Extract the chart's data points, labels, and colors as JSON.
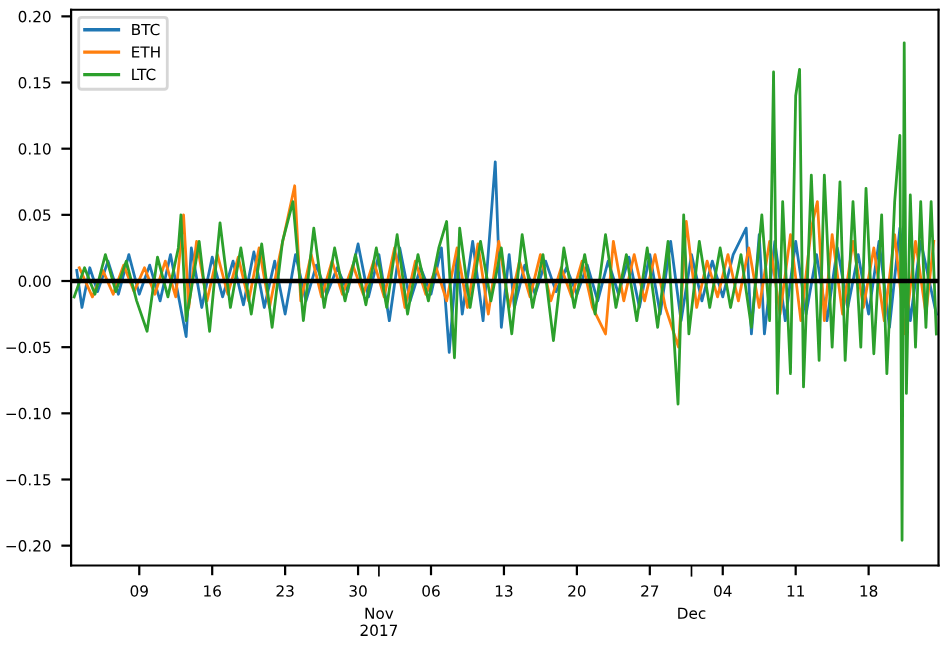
{
  "chart_data": {
    "type": "line",
    "xlim": [
      "2017-10-02T11:00",
      "2017-12-24T17:00"
    ],
    "ylim": [
      -0.215,
      0.205
    ],
    "yticks": [
      {
        "value": -0.2,
        "label": "−0.20"
      },
      {
        "value": -0.15,
        "label": "−0.15"
      },
      {
        "value": -0.1,
        "label": "−0.10"
      },
      {
        "value": -0.05,
        "label": "−0.05"
      },
      {
        "value": 0,
        "label": "0.00"
      },
      {
        "value": 0.05,
        "label": "0.05"
      },
      {
        "value": 0.1,
        "label": "0.10"
      },
      {
        "value": 0.15,
        "label": "0.15"
      },
      {
        "value": 0.2,
        "label": "0.20"
      }
    ],
    "xticks": [
      {
        "value": "2017-10-09",
        "label": "09"
      },
      {
        "value": "2017-10-16",
        "label": "16"
      },
      {
        "value": "2017-10-23",
        "label": "23"
      },
      {
        "value": "2017-10-30",
        "label": "30"
      },
      {
        "value": "2017-11-01",
        "label": null
      },
      {
        "value": "2017-11-06",
        "label": "06"
      },
      {
        "value": "2017-11-13",
        "label": "13"
      },
      {
        "value": "2017-11-20",
        "label": "20"
      },
      {
        "value": "2017-11-27",
        "label": "27"
      },
      {
        "value": "2017-12-01",
        "label": null
      },
      {
        "value": "2017-12-04",
        "label": "04"
      },
      {
        "value": "2017-12-11",
        "label": "11"
      },
      {
        "value": "2017-12-18",
        "label": "18"
      }
    ],
    "grid": false,
    "legend": "top left",
    "annotations": [
      "Nov\n2017",
      "Dec"
    ],
    "ref_lines": [
      {
        "axis": "y",
        "value": 0,
        "color": "#000000"
      }
    ],
    "series": [
      {
        "name": "BTC",
        "color": "#1f77b4",
        "x": [
          "2017-10-03T00:00",
          "2017-10-03T12:00",
          "2017-10-04T06:00",
          "2017-10-05T00:00",
          "2017-10-06T00:00",
          "2017-10-07T00:00",
          "2017-10-08T00:00",
          "2017-10-09T00:00",
          "2017-10-10T00:00",
          "2017-10-11T00:00",
          "2017-10-12T00:00",
          "2017-10-13T12:00",
          "2017-10-14T00:00",
          "2017-10-15T00:00",
          "2017-10-16T00:00",
          "2017-10-17T00:00",
          "2017-10-18T00:00",
          "2017-10-19T00:00",
          "2017-10-20T00:00",
          "2017-10-21T00:00",
          "2017-10-22T00:00",
          "2017-10-23T00:00",
          "2017-10-24T00:00",
          "2017-10-25T00:00",
          "2017-10-26T00:00",
          "2017-10-27T00:00",
          "2017-10-28T00:00",
          "2017-10-29T00:00",
          "2017-10-30T00:00",
          "2017-10-31T00:00",
          "2017-11-01T00:00",
          "2017-11-02T00:00",
          "2017-11-03T00:00",
          "2017-11-04T00:00",
          "2017-11-05T00:00",
          "2017-11-06T00:00",
          "2017-11-07T00:00",
          "2017-11-07T18:00",
          "2017-11-08T12:00",
          "2017-11-09T00:00",
          "2017-11-10T00:00",
          "2017-11-11T00:00",
          "2017-11-12T04:00",
          "2017-11-12T18:00",
          "2017-11-13T12:00",
          "2017-11-14T00:00",
          "2017-11-15T00:00",
          "2017-11-16T00:00",
          "2017-11-17T00:00",
          "2017-11-18T00:00",
          "2017-11-19T00:00",
          "2017-11-20T00:00",
          "2017-11-21T00:00",
          "2017-11-22T00:00",
          "2017-11-23T00:00",
          "2017-11-24T00:00",
          "2017-11-25T00:00",
          "2017-11-26T00:00",
          "2017-11-27T00:00",
          "2017-11-28T00:00",
          "2017-11-29T00:00",
          "2017-11-30T00:00",
          "2017-12-01T00:00",
          "2017-12-02T00:00",
          "2017-12-03T00:00",
          "2017-12-04T00:00",
          "2017-12-05T00:00",
          "2017-12-06T06:00",
          "2017-12-06T18:00",
          "2017-12-07T12:00",
          "2017-12-08T00:00",
          "2017-12-09T00:00",
          "2017-12-10T00:00",
          "2017-12-11T00:00",
          "2017-12-12T00:00",
          "2017-12-13T00:00",
          "2017-12-14T00:00",
          "2017-12-15T00:00",
          "2017-12-16T00:00",
          "2017-12-17T00:00",
          "2017-12-18T00:00",
          "2017-12-19T00:00",
          "2017-12-20T00:00",
          "2017-12-21T00:00",
          "2017-12-22T00:00",
          "2017-12-23T00:00",
          "2017-12-24T12:00"
        ],
        "values": [
          0.008,
          -0.02,
          0.01,
          -0.008,
          0.015,
          -0.01,
          0.02,
          -0.01,
          0.012,
          -0.015,
          0.02,
          -0.042,
          0.025,
          -0.02,
          0.018,
          -0.012,
          0.015,
          -0.018,
          0.022,
          -0.02,
          0.015,
          -0.025,
          0.02,
          -0.015,
          0.012,
          -0.01,
          0.01,
          -0.008,
          0.028,
          -0.012,
          0.02,
          -0.03,
          0.025,
          -0.015,
          0.01,
          -0.01,
          0.025,
          -0.054,
          0.02,
          -0.025,
          0.03,
          -0.03,
          0.09,
          -0.035,
          0.02,
          -0.02,
          0.012,
          -0.01,
          0.015,
          -0.008,
          0.01,
          -0.01,
          0.012,
          -0.015,
          0.015,
          -0.01,
          0.018,
          -0.02,
          0.02,
          -0.025,
          0.03,
          -0.03,
          0.02,
          -0.015,
          0.015,
          -0.012,
          0.02,
          0.04,
          -0.04,
          0.035,
          -0.04,
          0.03,
          -0.03,
          0.03,
          -0.025,
          0.02,
          -0.03,
          0.025,
          -0.02,
          0.02,
          -0.025,
          0.03,
          -0.035,
          0.04,
          -0.03,
          0.03,
          -0.025
        ]
      },
      {
        "name": "ETH",
        "color": "#ff7f0e",
        "x": [
          "2017-10-03T06:00",
          "2017-10-04T12:00",
          "2017-10-05T12:00",
          "2017-10-06T12:00",
          "2017-10-07T12:00",
          "2017-10-08T12:00",
          "2017-10-09T12:00",
          "2017-10-10T12:00",
          "2017-10-11T12:00",
          "2017-10-12T12:00",
          "2017-10-13T06:00",
          "2017-10-13T18:00",
          "2017-10-14T12:00",
          "2017-10-15T12:00",
          "2017-10-16T12:00",
          "2017-10-17T12:00",
          "2017-10-18T12:00",
          "2017-10-19T12:00",
          "2017-10-20T12:00",
          "2017-10-21T12:00",
          "2017-10-22T12:00",
          "2017-10-23T22:00",
          "2017-10-24T12:00",
          "2017-10-25T12:00",
          "2017-10-26T12:00",
          "2017-10-27T12:00",
          "2017-10-28T12:00",
          "2017-10-29T12:00",
          "2017-10-30T12:00",
          "2017-10-31T12:00",
          "2017-11-01T12:00",
          "2017-11-02T12:00",
          "2017-11-03T12:00",
          "2017-11-04T12:00",
          "2017-11-05T12:00",
          "2017-11-06T12:00",
          "2017-11-07T12:00",
          "2017-11-08T12:00",
          "2017-11-09T12:00",
          "2017-11-10T12:00",
          "2017-11-11T12:00",
          "2017-11-12T12:00",
          "2017-11-13T12:00",
          "2017-11-14T12:00",
          "2017-11-15T12:00",
          "2017-11-16T12:00",
          "2017-11-17T12:00",
          "2017-11-18T12:00",
          "2017-11-19T12:00",
          "2017-11-20T12:00",
          "2017-11-21T12:00",
          "2017-11-22T18:00",
          "2017-11-23T12:00",
          "2017-11-24T12:00",
          "2017-11-25T12:00",
          "2017-11-26T12:00",
          "2017-11-27T12:00",
          "2017-11-28T12:00",
          "2017-11-29T18:00",
          "2017-11-30T12:00",
          "2017-12-01T12:00",
          "2017-12-02T12:00",
          "2017-12-03T12:00",
          "2017-12-04T12:00",
          "2017-12-05T12:00",
          "2017-12-06T12:00",
          "2017-12-07T12:00",
          "2017-12-08T12:00",
          "2017-12-09T12:00",
          "2017-12-10T12:00",
          "2017-12-11T12:00",
          "2017-12-12T12:00",
          "2017-12-13T02:00",
          "2017-12-13T18:00",
          "2017-12-14T12:00",
          "2017-12-15T12:00",
          "2017-12-16T12:00",
          "2017-12-17T12:00",
          "2017-12-18T12:00",
          "2017-12-19T12:00",
          "2017-12-20T12:00",
          "2017-12-21T12:00",
          "2017-12-22T12:00",
          "2017-12-23T12:00",
          "2017-12-24T06:00"
        ],
        "values": [
          0.01,
          -0.012,
          0.008,
          -0.01,
          0.012,
          -0.008,
          0.01,
          -0.01,
          0.015,
          -0.012,
          0.05,
          -0.02,
          0.03,
          -0.015,
          0.02,
          -0.01,
          0.018,
          -0.015,
          0.025,
          -0.02,
          0.02,
          0.072,
          -0.015,
          0.02,
          -0.012,
          0.015,
          -0.01,
          0.012,
          -0.01,
          0.015,
          -0.012,
          0.025,
          -0.02,
          0.015,
          -0.01,
          0.01,
          -0.015,
          0.025,
          -0.02,
          0.028,
          -0.025,
          0.03,
          -0.02,
          0.015,
          -0.012,
          0.02,
          -0.015,
          0.01,
          -0.012,
          0.015,
          -0.02,
          -0.04,
          0.03,
          -0.015,
          0.02,
          -0.015,
          0.02,
          -0.02,
          -0.05,
          0.045,
          -0.02,
          0.015,
          -0.012,
          0.02,
          -0.015,
          0.025,
          -0.02,
          0.03,
          -0.025,
          0.035,
          -0.03,
          0.04,
          0.06,
          -0.03,
          0.035,
          -0.025,
          0.03,
          -0.02,
          0.025,
          -0.03,
          0.035,
          -0.04,
          0.03,
          -0.025,
          0.03
        ]
      },
      {
        "name": "LTC",
        "color": "#2ca02c",
        "x": [
          "2017-10-02T18:00",
          "2017-10-03T18:00",
          "2017-10-04T18:00",
          "2017-10-05T18:00",
          "2017-10-06T18:00",
          "2017-10-07T18:00",
          "2017-10-08T18:00",
          "2017-10-09T18:00",
          "2017-10-10T18:00",
          "2017-10-11T18:00",
          "2017-10-12T18:00",
          "2017-10-13T00:00",
          "2017-10-13T12:00",
          "2017-10-14T18:00",
          "2017-10-15T18:00",
          "2017-10-16T18:00",
          "2017-10-17T18:00",
          "2017-10-18T18:00",
          "2017-10-19T18:00",
          "2017-10-20T18:00",
          "2017-10-21T18:00",
          "2017-10-22T18:00",
          "2017-10-23T18:00",
          "2017-10-24T18:00",
          "2017-10-25T18:00",
          "2017-10-26T18:00",
          "2017-10-27T18:00",
          "2017-10-28T18:00",
          "2017-10-29T18:00",
          "2017-10-30T18:00",
          "2017-10-31T18:00",
          "2017-11-01T18:00",
          "2017-11-02T18:00",
          "2017-11-03T18:00",
          "2017-11-04T18:00",
          "2017-11-05T18:00",
          "2017-11-06T18:00",
          "2017-11-07T12:00",
          "2017-11-08T06:00",
          "2017-11-08T18:00",
          "2017-11-09T18:00",
          "2017-11-10T18:00",
          "2017-11-11T18:00",
          "2017-11-12T18:00",
          "2017-11-13T18:00",
          "2017-11-14T18:00",
          "2017-11-15T18:00",
          "2017-11-16T18:00",
          "2017-11-17T18:00",
          "2017-11-18T18:00",
          "2017-11-19T18:00",
          "2017-11-20T18:00",
          "2017-11-21T18:00",
          "2017-11-22T18:00",
          "2017-11-23T18:00",
          "2017-11-24T18:00",
          "2017-11-25T18:00",
          "2017-11-26T18:00",
          "2017-11-27T18:00",
          "2017-11-28T18:00",
          "2017-11-29T17:00",
          "2017-11-30T06:00",
          "2017-11-30T18:00",
          "2017-12-01T18:00",
          "2017-12-02T18:00",
          "2017-12-03T18:00",
          "2017-12-04T18:00",
          "2017-12-05T18:00",
          "2017-12-06T18:00",
          "2017-12-07T18:00",
          "2017-12-08T12:00",
          "2017-12-08T21:00",
          "2017-12-09T06:00",
          "2017-12-09T18:00",
          "2017-12-10T12:00",
          "2017-12-11T00:00",
          "2017-12-11T09:00",
          "2017-12-11T18:00",
          "2017-12-12T12:00",
          "2017-12-13T06:00",
          "2017-12-13T18:00",
          "2017-12-14T12:00",
          "2017-12-15T06:00",
          "2017-12-15T18:00",
          "2017-12-16T12:00",
          "2017-12-17T06:00",
          "2017-12-17T18:00",
          "2017-12-18T12:00",
          "2017-12-19T06:00",
          "2017-12-19T18:00",
          "2017-12-20T12:00",
          "2017-12-21T00:00",
          "2017-12-21T05:00",
          "2017-12-21T10:00",
          "2017-12-21T15:00",
          "2017-12-22T00:00",
          "2017-12-22T12:00",
          "2017-12-23T00:00",
          "2017-12-23T12:00",
          "2017-12-24T00:00",
          "2017-12-24T12:00"
        ],
        "values": [
          -0.012,
          0.01,
          -0.01,
          0.02,
          -0.008,
          0.015,
          -0.015,
          -0.038,
          0.018,
          -0.012,
          0.025,
          0.05,
          -0.03,
          0.03,
          -0.038,
          0.044,
          -0.02,
          0.025,
          -0.025,
          0.028,
          -0.035,
          0.03,
          0.06,
          -0.03,
          0.04,
          -0.02,
          0.025,
          -0.015,
          0.02,
          -0.018,
          0.025,
          -0.02,
          0.035,
          -0.025,
          0.02,
          -0.015,
          0.025,
          0.045,
          -0.058,
          0.04,
          -0.02,
          0.03,
          -0.015,
          0.025,
          -0.04,
          0.035,
          -0.02,
          0.02,
          -0.045,
          0.025,
          -0.02,
          0.02,
          -0.025,
          0.035,
          -0.02,
          0.02,
          -0.03,
          0.025,
          -0.035,
          0.03,
          -0.093,
          0.05,
          -0.04,
          0.03,
          -0.02,
          0.025,
          -0.02,
          0.02,
          -0.035,
          0.05,
          -0.03,
          0.158,
          -0.085,
          0.06,
          -0.07,
          0.14,
          0.16,
          -0.08,
          0.08,
          -0.06,
          0.08,
          -0.05,
          0.075,
          -0.06,
          0.06,
          -0.05,
          0.07,
          -0.055,
          0.05,
          -0.07,
          0.06,
          0.11,
          -0.196,
          0.18,
          -0.085,
          0.065,
          -0.05,
          0.06,
          -0.035,
          0.06,
          -0.04
        ]
      }
    ]
  }
}
